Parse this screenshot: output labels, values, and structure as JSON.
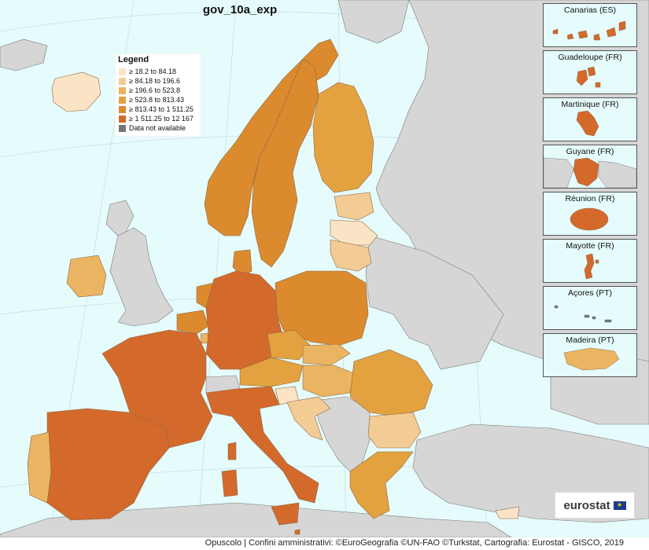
{
  "map": {
    "title": "gov_10a_exp"
  },
  "colors": {
    "sea": "#e6fbfb",
    "non_eu": "#d6d6d6",
    "border": "#7a7a7a",
    "c1": "#fbe3c6",
    "c2": "#f3cc95",
    "c3": "#ebb462",
    "c4": "#e3a23f",
    "c5": "#db8a2e",
    "c6": "#d4692c",
    "na": "#777777"
  },
  "legend": {
    "title": "Legend",
    "items": [
      {
        "label": "≥ 18.2 to 84.18",
        "color": "#fbe3c6"
      },
      {
        "label": "≥ 84.18 to 196.6",
        "color": "#f3cc95"
      },
      {
        "label": "≥ 196.6 to 523.8",
        "color": "#ebb462"
      },
      {
        "label": "≥ 523.8 to 813.43",
        "color": "#e3a23f"
      },
      {
        "label": "≥ 813.43 to 1 511.25",
        "color": "#db8a2e"
      },
      {
        "label": "≥ 1 511.25 to 12 167",
        "color": "#d4692c"
      },
      {
        "label": "Data not available",
        "color": "#777777"
      }
    ]
  },
  "insets": [
    {
      "label": "Canarias (ES)"
    },
    {
      "label": "Guadeloupe (FR)"
    },
    {
      "label": "Martinique (FR)"
    },
    {
      "label": "Guyane (FR)"
    },
    {
      "label": "Réunion (FR)"
    },
    {
      "label": "Mayotte (FR)"
    },
    {
      "label": "Açores (PT)"
    },
    {
      "label": "Madeira (PT)"
    }
  ],
  "logo": {
    "text": "eurostat",
    "flag_symbol": "★"
  },
  "footer": {
    "text": "Opuscolo | Confini amministrativi: ©EuroGeografia ©UN-FAO ©Turkstat, Cartografia: Eurostat - GISCO, 2019"
  }
}
